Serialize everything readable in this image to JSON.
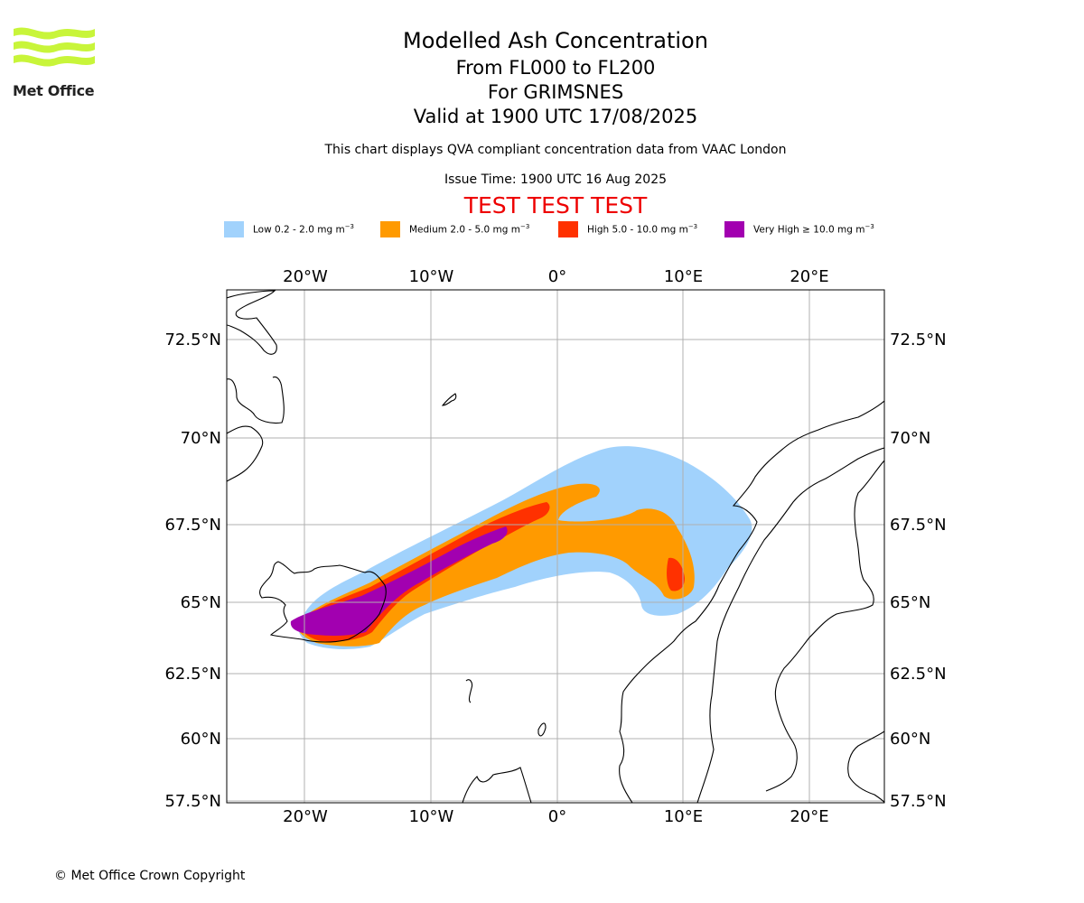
{
  "branding": {
    "logo_text": "Met Office",
    "logo_color": "#c8f53a"
  },
  "header": {
    "title": "Modelled Ash Concentration",
    "level_range": "From FL000 to FL200",
    "volcano": "For GRIMSNES",
    "valid_time": "Valid at 1900 UTC 17/08/2025",
    "description": "This chart displays QVA compliant concentration data from VAAC London",
    "issue_time": "Issue Time: 1900 UTC 16 Aug 2025",
    "test_banner": "TEST TEST TEST",
    "test_banner_color": "#ee0000"
  },
  "legend": [
    {
      "label": "Low 0.2 - 2.0 mg m",
      "exp": "−3",
      "color": "#a1d2fc"
    },
    {
      "label": "Medium 2.0 - 5.0 mg m",
      "exp": "−3",
      "color": "#ff9a00"
    },
    {
      "label": "High 5.0 - 10.0 mg m",
      "exp": "−3",
      "color": "#ff3100"
    },
    {
      "label": "Very High ≥ 10.0 mg m",
      "exp": "−3",
      "color": "#a200b0"
    }
  ],
  "map": {
    "lon_range": [
      -26,
      26
    ],
    "lat_range": [
      57.5,
      74
    ],
    "lon_ticks": [
      {
        "lon": -20,
        "label": "20°W"
      },
      {
        "lon": -10,
        "label": "10°W"
      },
      {
        "lon": 0,
        "label": "0°"
      },
      {
        "lon": 10,
        "label": "10°E"
      },
      {
        "lon": 20,
        "label": "20°E"
      }
    ],
    "lat_ticks": [
      {
        "lat": 72.5,
        "label": "72.5°N"
      },
      {
        "lat": 70,
        "label": "70°N"
      },
      {
        "lat": 67.5,
        "label": "67.5°N"
      },
      {
        "lat": 65,
        "label": "65°N"
      },
      {
        "lat": 62.5,
        "label": "62.5°N"
      },
      {
        "lat": 60,
        "label": "60°N"
      },
      {
        "lat": 57.5,
        "label": "57.5°N"
      }
    ],
    "grid": true,
    "coastline_color": "#000000",
    "gridline_color": "#b0b0b0"
  },
  "footer": {
    "copyright": "© Met Office Crown Copyright"
  }
}
